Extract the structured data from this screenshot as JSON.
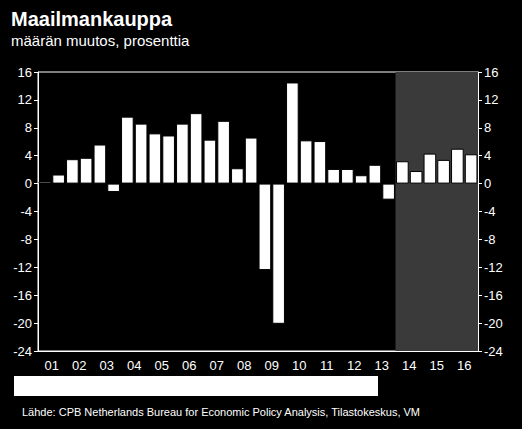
{
  "chart_data": {
    "type": "bar",
    "title": "Maailmankauppa",
    "subtitle": "määrän muutos, prosenttia",
    "source": "Lähde: CPB Netherlands Bureau for Economic Policy Analysis, Tilastokeskus, VM",
    "categories": [
      "01",
      null,
      "02",
      null,
      "03",
      null,
      "04",
      null,
      "05",
      null,
      "06",
      null,
      "07",
      null,
      "08",
      null,
      "09",
      null,
      "10",
      null,
      "11",
      null,
      "12",
      null,
      "13",
      null,
      "14",
      null,
      "15",
      null,
      "16",
      null
    ],
    "values": [
      0.3,
      1.3,
      3.5,
      3.7,
      5.6,
      -1.2,
      9.6,
      8.6,
      7.2,
      6.9,
      8.6,
      10.1,
      6.3,
      9.0,
      2.2,
      6.6,
      -12.4,
      -20.1,
      14.5,
      6.2,
      6.1,
      2.1,
      2.1,
      1.2,
      2.7,
      -2.3,
      3.2,
      1.8,
      4.3,
      3.4,
      5.0,
      4.2
    ],
    "color": "#ffffff",
    "shaded_from": "14",
    "ylim": [
      -24,
      16
    ],
    "yticks": [
      -24,
      -20,
      -16,
      -12,
      -8,
      -4,
      0,
      4,
      8,
      12,
      16
    ],
    "grid": false
  }
}
